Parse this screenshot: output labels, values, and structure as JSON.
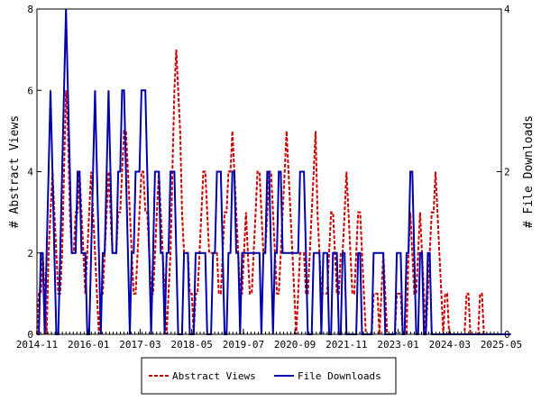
{
  "chart_data": {
    "type": "line",
    "ylabel": "# Abstract Views",
    "y2label": "# File Downloads",
    "ylim": [
      0,
      8
    ],
    "y2lim": [
      0,
      4
    ],
    "yticks": [
      "0",
      "2",
      "4",
      "6",
      "8"
    ],
    "y2ticks": [
      "0",
      "2",
      "4"
    ],
    "xticks": [
      "2014-11",
      "2016-01",
      "2017-03",
      "2018-05",
      "2019-07",
      "2020-09",
      "2021-11",
      "2023-01",
      "2024-03",
      "2025-05"
    ],
    "legend": {
      "position": "bottom"
    },
    "colors": {
      "views": "#cc0000",
      "downloads": "#0000aa"
    },
    "series": [
      {
        "name": "Abstract Views",
        "axis": "left",
        "values": [
          0,
          1,
          1,
          2,
          1,
          0,
          2,
          3,
          4,
          3,
          2,
          1,
          1,
          2,
          4,
          6,
          5,
          3,
          2,
          2,
          3,
          3,
          4,
          3,
          2,
          1,
          2,
          3,
          4,
          3,
          2,
          1,
          0,
          1,
          1,
          2,
          3,
          4,
          3,
          2,
          2,
          2,
          3,
          3,
          4,
          5,
          5,
          4,
          3,
          2,
          1,
          1,
          2,
          3,
          4,
          4,
          3,
          3,
          2,
          1,
          1,
          2,
          3,
          4,
          3,
          2,
          1,
          0,
          1,
          2,
          4,
          6,
          7,
          6,
          5,
          3,
          2,
          2,
          2,
          1,
          1,
          0,
          1,
          1,
          2,
          3,
          4,
          4,
          3,
          2,
          2,
          2,
          2,
          2,
          1,
          1,
          2,
          3,
          3,
          4,
          4,
          5,
          4,
          3,
          2,
          1,
          1,
          2,
          3,
          2,
          1,
          1,
          2,
          3,
          4,
          4,
          3,
          2,
          2,
          3,
          4,
          4,
          3,
          2,
          1,
          1,
          2,
          3,
          4,
          5,
          4,
          3,
          2,
          1,
          0,
          1,
          2,
          2,
          2,
          1,
          1,
          2,
          3,
          4,
          5,
          3,
          2,
          1,
          1,
          1,
          1,
          2,
          3,
          3,
          2,
          1,
          1,
          2,
          2,
          3,
          4,
          3,
          2,
          1,
          1,
          2,
          3,
          3,
          2,
          1,
          0,
          0,
          0,
          0,
          1,
          1,
          1,
          0,
          1,
          2,
          1,
          0,
          0,
          0,
          0,
          0,
          1,
          1,
          1,
          0,
          0,
          0,
          2,
          3,
          2,
          1,
          1,
          2,
          3,
          2,
          1,
          0,
          1,
          2,
          3,
          3,
          4,
          3,
          2,
          1,
          0,
          1,
          1,
          0,
          0,
          0,
          0,
          0,
          0,
          0,
          0,
          0,
          1,
          1,
          0,
          0,
          0,
          0,
          0,
          1,
          1,
          0,
          0,
          0,
          0,
          0,
          0,
          0,
          0,
          0,
          0
        ]
      },
      {
        "name": "File Downloads",
        "axis": "right",
        "values": [
          0,
          0,
          1,
          1,
          0,
          1,
          2,
          3,
          2,
          1,
          0,
          0,
          1,
          2,
          3,
          4,
          3,
          2,
          1,
          1,
          1,
          2,
          2,
          1,
          1,
          1,
          0,
          0,
          1,
          2,
          3,
          2,
          1,
          0,
          1,
          1,
          2,
          3,
          2,
          1,
          1,
          1,
          2,
          2,
          3,
          3,
          2,
          1,
          0,
          1,
          1,
          2,
          2,
          2,
          3,
          3,
          3,
          2,
          1,
          0,
          1,
          2,
          2,
          2,
          1,
          1,
          0,
          1,
          1,
          2,
          2,
          2,
          1,
          0,
          0,
          0,
          1,
          1,
          1,
          0,
          0,
          0,
          1,
          1,
          1,
          1,
          1,
          1,
          0,
          0,
          0,
          1,
          1,
          2,
          2,
          2,
          1,
          0,
          0,
          1,
          1,
          2,
          2,
          1,
          1,
          0,
          1,
          1,
          1,
          1,
          1,
          1,
          1,
          1,
          1,
          1,
          0,
          1,
          1,
          2,
          2,
          1,
          0,
          1,
          1,
          2,
          2,
          1,
          1,
          1,
          1,
          1,
          1,
          1,
          1,
          1,
          2,
          2,
          2,
          1,
          0,
          0,
          0,
          1,
          1,
          1,
          1,
          0,
          1,
          1,
          1,
          0,
          0,
          1,
          1,
          1,
          0,
          0,
          1,
          1,
          0,
          0,
          0,
          0,
          0,
          0,
          1,
          1,
          0,
          0,
          0,
          0,
          0,
          0,
          1,
          1,
          1,
          1,
          1,
          1,
          0,
          0,
          0,
          0,
          0,
          0,
          1,
          1,
          1,
          0,
          0,
          1,
          1,
          2,
          2,
          1,
          0,
          0,
          1,
          1,
          0,
          0,
          1,
          1,
          0,
          0,
          0,
          0,
          0,
          0,
          0,
          0,
          0,
          0,
          0,
          0,
          0,
          0,
          0,
          0,
          0,
          0,
          0,
          0,
          0,
          0,
          0,
          0,
          0,
          0,
          0,
          0,
          0,
          0,
          0,
          0,
          0,
          0,
          0,
          0,
          0,
          0,
          0,
          0,
          0,
          0
        ]
      }
    ]
  }
}
